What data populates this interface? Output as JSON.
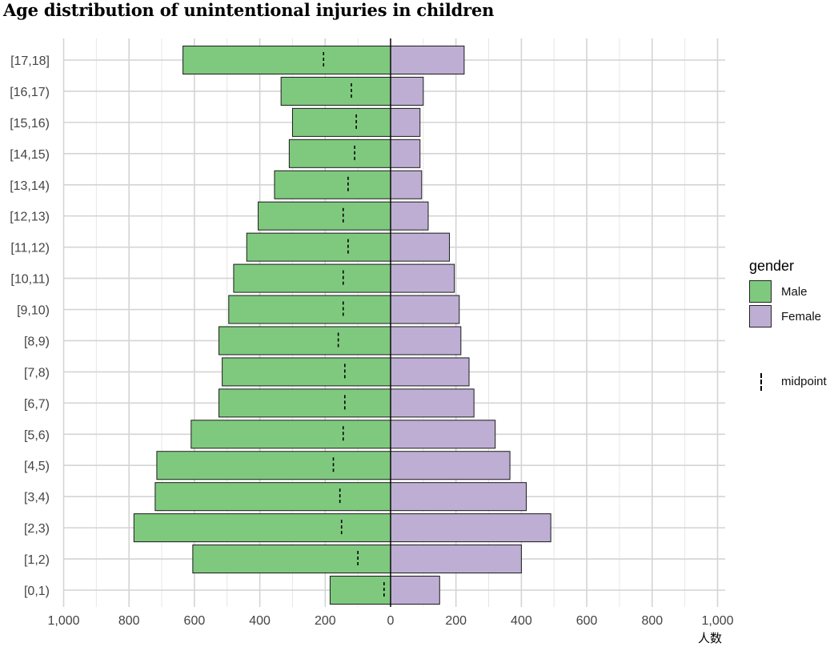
{
  "title": "Age distribution of unintentional injuries in children",
  "legend": {
    "title": "gender",
    "items": [
      {
        "label": "Male",
        "color": "#7fc97f"
      },
      {
        "label": "Female",
        "color": "#beaed4"
      }
    ],
    "midpoint_label": "midpoint"
  },
  "x_unit_label": "人数",
  "chart_data": {
    "type": "bar",
    "orientation": "horizontal",
    "title": "Age distribution of unintentional injuries in children",
    "categories": [
      "[0,1)",
      "[1,2)",
      "[2,3)",
      "[3,4)",
      "[4,5)",
      "[5,6)",
      "[6,7)",
      "[7,8)",
      "[8,9)",
      "[9,10)",
      "[10,11)",
      "[11,12)",
      "[12,13)",
      "[13,14)",
      "[14,15)",
      "[15,16)",
      "[16,17)",
      "[17,18]"
    ],
    "series": [
      {
        "name": "Male",
        "color": "#7fc97f",
        "direction": "left",
        "values": [
          185,
          605,
          785,
          720,
          715,
          610,
          525,
          515,
          525,
          495,
          480,
          440,
          405,
          355,
          310,
          300,
          335,
          635
        ]
      },
      {
        "name": "Female",
        "color": "#beaed4",
        "direction": "right",
        "values": [
          150,
          400,
          490,
          415,
          365,
          320,
          255,
          240,
          215,
          210,
          195,
          180,
          115,
          95,
          90,
          90,
          100,
          225
        ]
      }
    ],
    "midpoints": {
      "name": "midpoint",
      "values": [
        20,
        100,
        150,
        155,
        175,
        145,
        140,
        140,
        160,
        145,
        145,
        130,
        145,
        130,
        110,
        105,
        120,
        205
      ]
    },
    "xlim": [
      -1000,
      1000
    ],
    "x_ticks": [
      -1000,
      -800,
      -600,
      -400,
      -200,
      0,
      200,
      400,
      600,
      800,
      1000
    ],
    "x_tick_labels": [
      "1,000",
      "800",
      "600",
      "400",
      "200",
      "0",
      "200",
      "400",
      "600",
      "800",
      "1,000"
    ],
    "xlabel": "人数",
    "ylabel": "",
    "grid": true,
    "legend_position": "right"
  }
}
